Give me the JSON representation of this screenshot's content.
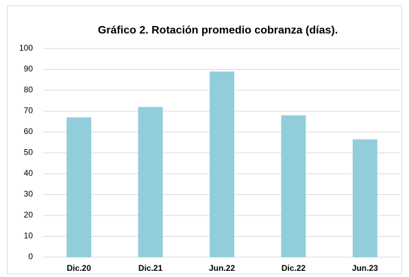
{
  "chart_data": {
    "type": "bar",
    "title": "Gráfico 2. Rotación promedio cobranza (días).",
    "categories": [
      "Dic.20",
      "Dic.21",
      "Jun.22",
      "Dic.22",
      "Jun.23"
    ],
    "values": [
      67,
      72,
      89,
      68,
      56.5
    ],
    "color": "#92cddc",
    "ylim": [
      0,
      100
    ],
    "yticks": [
      0,
      10,
      20,
      30,
      40,
      50,
      60,
      70,
      80,
      90,
      100
    ],
    "grid": true
  }
}
